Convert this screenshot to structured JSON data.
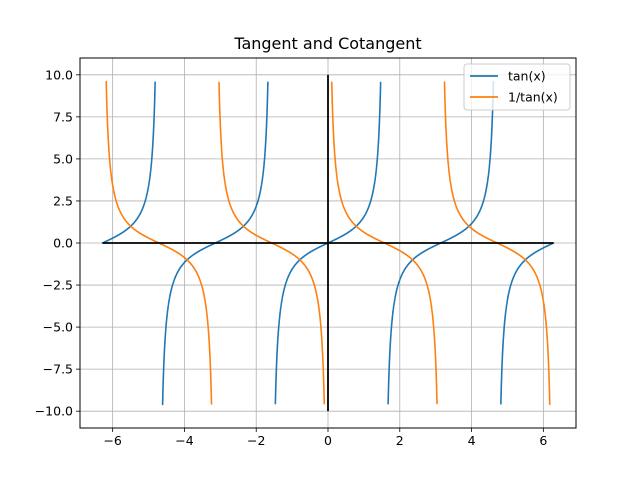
{
  "chart_data": {
    "type": "line",
    "title": "Tangent and Cotangent",
    "xlabel": "",
    "ylabel": "",
    "xlim": [
      -6.91,
      6.91
    ],
    "ylim": [
      -11.0,
      11.0
    ],
    "xticks": [
      -6,
      -4,
      -2,
      0,
      2,
      4,
      6
    ],
    "xtick_labels": [
      "−6",
      "−4",
      "−2",
      "0",
      "2",
      "4",
      "6"
    ],
    "yticks": [
      -10.0,
      -7.5,
      -5.0,
      -2.5,
      0.0,
      2.5,
      5.0,
      7.5,
      10.0
    ],
    "ytick_labels": [
      "−10.0",
      "−7.5",
      "−5.0",
      "−2.5",
      "0.0",
      "2.5",
      "5.0",
      "7.5",
      "10.0"
    ],
    "grid": true,
    "legend_position": "top-right",
    "x_domain": [
      -6.283,
      6.283
    ],
    "clip_abs_y": 9.6,
    "series": [
      {
        "name": "tan(x)",
        "function": "tan",
        "color": "#1f77b4"
      },
      {
        "name": "1/tan(x)",
        "function": "cot",
        "color": "#ff7f0e"
      }
    ],
    "reference_lines": [
      {
        "kind": "horizontal",
        "y": 0,
        "color": "#000000"
      },
      {
        "kind": "vertical",
        "x": 0,
        "color": "#000000"
      }
    ]
  }
}
